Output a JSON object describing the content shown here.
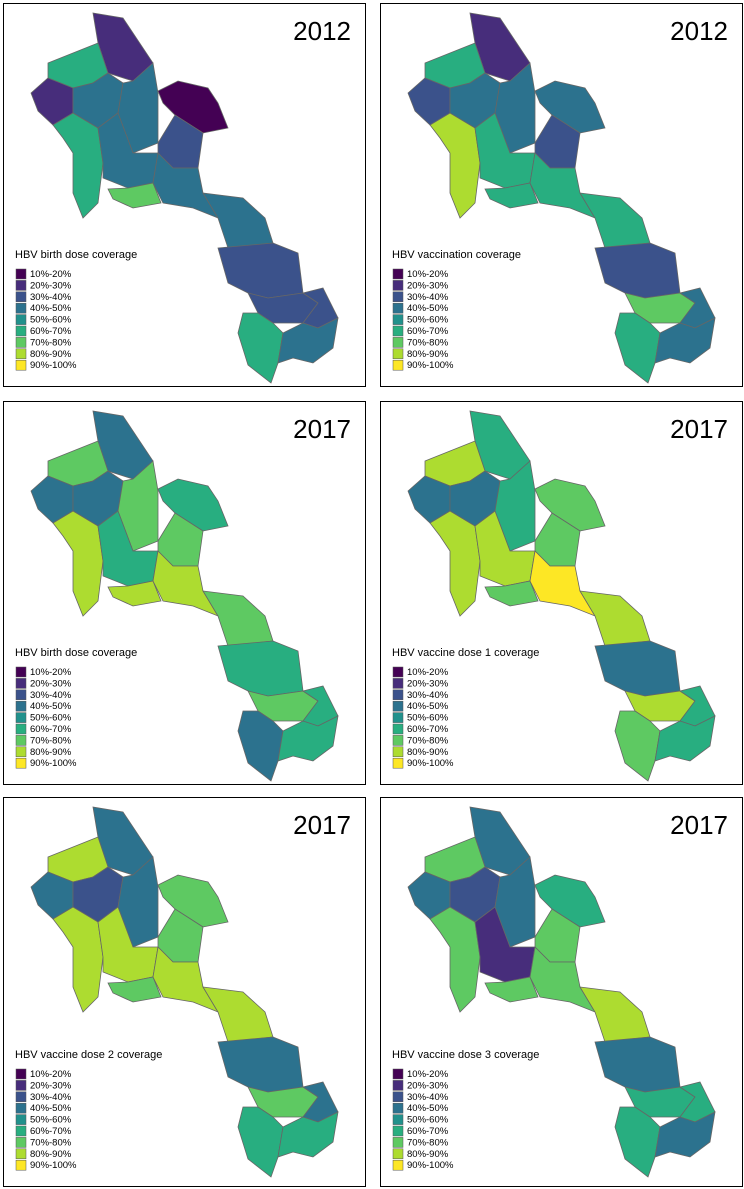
{
  "legend": {
    "labels": [
      "10%-20%",
      "20%-30%",
      "30%-40%",
      "40%-50%",
      "50%-60%",
      "60%-70%",
      "70%-80%",
      "80%-90%",
      "90%-100%"
    ],
    "colors": [
      "#440154",
      "#472d7b",
      "#3b528b",
      "#2c728e",
      "#21918c",
      "#28ae80",
      "#5ec962",
      "#addc30",
      "#fde725"
    ]
  },
  "panels": [
    {
      "year": "2012",
      "legend_title": "HBV birth dose coverage",
      "region_colors": [
        "#472d7b",
        "#28ae80",
        "#472d7b",
        "#2c728e",
        "#2c728e",
        "#440154",
        "#28ae80",
        "#3b528b",
        "#2c728e",
        "#5ec962",
        "#2c728e",
        "#2c728e",
        "#3b528b",
        "#3b528b",
        "#3b528b",
        "#28ae80",
        "#2c728e"
      ]
    },
    {
      "year": "2012",
      "legend_title": "HBV vaccination coverage",
      "region_colors": [
        "#472d7b",
        "#28ae80",
        "#3b528b",
        "#2c728e",
        "#2c728e",
        "#2c728e",
        "#addc30",
        "#3b528b",
        "#28ae80",
        "#28ae80",
        "#28ae80",
        "#28ae80",
        "#3b528b",
        "#5ec962",
        "#2c728e",
        "#28ae80",
        "#2c728e"
      ]
    },
    {
      "year": "2017",
      "legend_title": "HBV birth dose coverage",
      "region_colors": [
        "#2c728e",
        "#5ec962",
        "#2c728e",
        "#2c728e",
        "#5ec962",
        "#28ae80",
        "#addc30",
        "#5ec962",
        "#28ae80",
        "#addc30",
        "#addc30",
        "#5ec962",
        "#28ae80",
        "#5ec962",
        "#28ae80",
        "#2c728e",
        "#28ae80"
      ]
    },
    {
      "year": "2017",
      "legend_title": "HBV vaccine dose 1 coverage",
      "region_colors": [
        "#28ae80",
        "#addc30",
        "#2c728e",
        "#2c728e",
        "#28ae80",
        "#5ec962",
        "#addc30",
        "#5ec962",
        "#addc30",
        "#5ec962",
        "#fde725",
        "#addc30",
        "#2c728e",
        "#addc30",
        "#28ae80",
        "#5ec962",
        "#28ae80"
      ]
    },
    {
      "year": "2017",
      "legend_title": "HBV vaccine dose 2 coverage",
      "region_colors": [
        "#2c728e",
        "#addc30",
        "#2c728e",
        "#3b528b",
        "#2c728e",
        "#5ec962",
        "#addc30",
        "#5ec962",
        "#addc30",
        "#5ec962",
        "#addc30",
        "#addc30",
        "#2c728e",
        "#5ec962",
        "#2c728e",
        "#28ae80",
        "#28ae80"
      ]
    },
    {
      "year": "2017",
      "legend_title": "HBV vaccine dose 3 coverage",
      "region_colors": [
        "#2c728e",
        "#5ec962",
        "#2c728e",
        "#3b528b",
        "#2c728e",
        "#28ae80",
        "#5ec962",
        "#5ec962",
        "#472d7b",
        "#5ec962",
        "#5ec962",
        "#addc30",
        "#2c728e",
        "#28ae80",
        "#28ae80",
        "#28ae80",
        "#2c728e"
      ]
    }
  ]
}
